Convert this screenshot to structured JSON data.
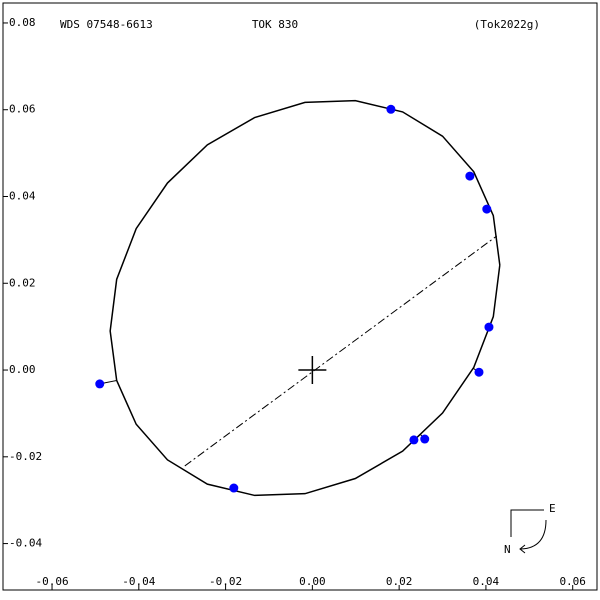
{
  "chart_data": {
    "type": "scatter",
    "title": "WDS 07548-6613",
    "subtitle": "TOK 830",
    "annotation": "(Tok2022g)",
    "xlim": [
      -0.0713,
      0.0656
    ],
    "ylim": [
      -0.0507,
      0.0846
    ],
    "xticks": [
      -0.06,
      -0.04,
      -0.02,
      {
        "value": 0,
        "label": "0.00"
      },
      0.02,
      0.04,
      0.06
    ],
    "yticks": [
      -0.04,
      -0.02,
      {
        "value": 0,
        "label": "0.00"
      },
      0.02,
      0.04,
      0.06,
      0.08
    ],
    "series": [
      {
        "color": "#0000ff",
        "x": [
          0.0181,
          0.0363,
          0.0402,
          0.0407,
          0.0384,
          0.0259,
          0.0234,
          -0.0181,
          -0.049
        ],
        "values": [
          0.0601,
          0.0447,
          0.0371,
          0.0099,
          -0.0005,
          -0.0159,
          -0.0161,
          -0.0272,
          -0.0032
        ]
      }
    ],
    "orbit": {
      "color": "#000000",
      "x": [
        0.0432,
        0.0417,
        0.0372,
        0.03,
        0.0208,
        0.0099,
        -0.0017,
        -0.0133,
        -0.0242,
        -0.0334,
        -0.0406,
        -0.0451,
        -0.0466,
        -0.0451,
        -0.0406,
        -0.0334,
        -0.0242,
        -0.0133,
        -0.0017,
        0.0099,
        0.0208,
        0.03,
        0.0372,
        0.0417,
        0.0432
      ],
      "values": [
        0.0242,
        0.0356,
        0.0457,
        0.0539,
        0.0595,
        0.0621,
        0.0617,
        0.0582,
        0.0519,
        0.0431,
        0.0326,
        0.0209,
        0.009,
        -0.0024,
        -0.0125,
        -0.0207,
        -0.0263,
        -0.0289,
        -0.0285,
        -0.025,
        -0.0187,
        -0.0099,
        0.0006,
        0.0123,
        0.0242
      ]
    },
    "line_of_nodes": {
      "x": [
        -0.0294,
        0.0425
      ],
      "values": [
        -0.0221,
        0.0309
      ]
    },
    "primary": {
      "x": 0,
      "y": 0
    },
    "compass": {
      "east": "E",
      "north": "N"
    }
  }
}
